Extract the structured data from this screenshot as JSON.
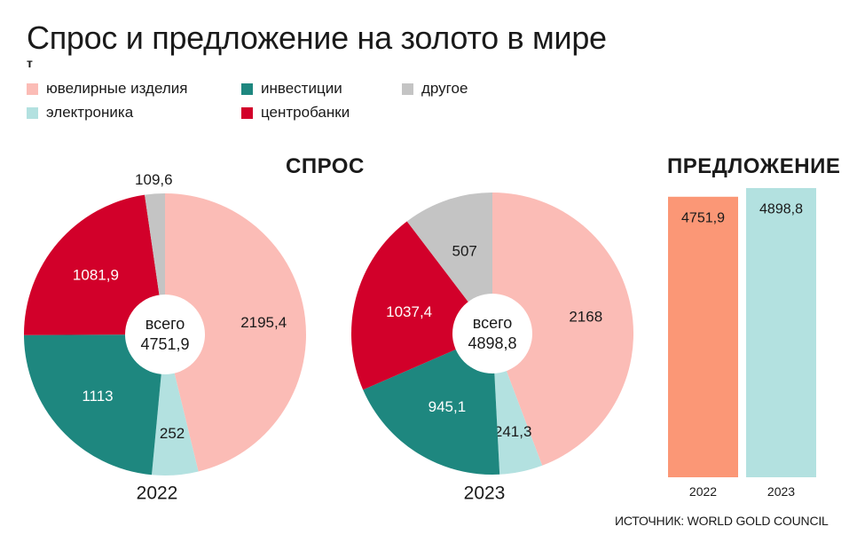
{
  "title": "Спрос и предложение на золото в мире",
  "unit": "т",
  "legend": [
    {
      "label": "ювелирные изделия",
      "color": "#fbbcb6"
    },
    {
      "label": "инвестиции",
      "color": "#1e877f"
    },
    {
      "label": "другое",
      "color": "#c4c4c4"
    },
    {
      "label": "электроника",
      "color": "#b3e1e0"
    },
    {
      "label": "центробанки",
      "color": "#d2002a"
    }
  ],
  "demand_title": "СПРОС",
  "supply_title": "ПРЕДЛОЖЕНИЕ",
  "source": "ИСТОЧНИК: WORLD GOLD COUNCIL",
  "chart_data": [
    {
      "type": "pie",
      "title": "2022",
      "center_label": "всего",
      "total_label": "4751,9",
      "slices": [
        {
          "category": "ювелирные изделия",
          "value": 2195.4,
          "label": "2195,4",
          "color": "#fbbcb6",
          "label_color": "#1a1a1a"
        },
        {
          "category": "электроника",
          "value": 252,
          "label": "252",
          "color": "#b3e1e0",
          "label_color": "#1a1a1a"
        },
        {
          "category": "инвестиции",
          "value": 1113,
          "label": "1113",
          "color": "#1e877f",
          "label_color": "#ffffff"
        },
        {
          "category": "центробанки",
          "value": 1081.9,
          "label": "1081,9",
          "color": "#d2002a",
          "label_color": "#ffffff"
        },
        {
          "category": "другое",
          "value": 109.6,
          "label": "109,6",
          "color": "#c4c4c4",
          "label_color": "#1a1a1a"
        }
      ]
    },
    {
      "type": "pie",
      "title": "2023",
      "center_label": "всего",
      "total_label": "4898,8",
      "slices": [
        {
          "category": "ювелирные изделия",
          "value": 2168,
          "label": "2168",
          "color": "#fbbcb6",
          "label_color": "#1a1a1a"
        },
        {
          "category": "электроника",
          "value": 241.3,
          "label": "241,3",
          "color": "#b3e1e0",
          "label_color": "#1a1a1a"
        },
        {
          "category": "инвестиции",
          "value": 945.1,
          "label": "945,1",
          "color": "#1e877f",
          "label_color": "#ffffff"
        },
        {
          "category": "центробанки",
          "value": 1037.4,
          "label": "1037,4",
          "color": "#d2002a",
          "label_color": "#ffffff"
        },
        {
          "category": "другое",
          "value": 507,
          "label": "507",
          "color": "#c4c4c4",
          "label_color": "#1a1a1a"
        }
      ]
    },
    {
      "type": "bar",
      "title": "ПРЕДЛОЖЕНИЕ",
      "categories": [
        "2022",
        "2023"
      ],
      "values": [
        4751.9,
        4898.8
      ],
      "value_labels": [
        "4751,9",
        "4898,8"
      ],
      "colors": [
        "#fb9776",
        "#b3e1e0"
      ],
      "ylim": [
        0,
        4898.8
      ]
    }
  ]
}
